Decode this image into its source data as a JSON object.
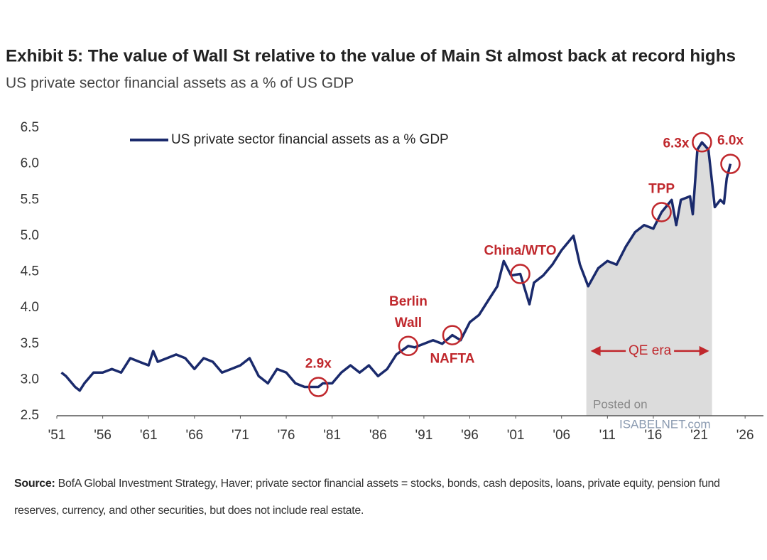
{
  "chart_data": {
    "type": "line",
    "title": "Exhibit 5: The value of Wall St relative to the value of Main St almost back at record highs",
    "subtitle": "US private sector financial assets as a % of US GDP",
    "x": [
      1951.5,
      1952,
      1953,
      1953.5,
      1954,
      1955,
      1956,
      1957,
      1958,
      1959,
      1960,
      1961,
      1961.5,
      1962,
      1963,
      1964,
      1965,
      1966,
      1967,
      1968,
      1969,
      1970,
      1971,
      1972,
      1973,
      1974,
      1975,
      1976,
      1977,
      1978,
      1979.5,
      1980,
      1981,
      1982,
      1983,
      1984,
      1985,
      1986,
      1987,
      1988,
      1989.3,
      1990,
      1991,
      1992,
      1993,
      1994.1,
      1995,
      1996,
      1997,
      1998,
      1999,
      1999.7,
      2000.5,
      2001.5,
      2002.5,
      2003,
      2004,
      2005,
      2006,
      2007.3,
      2008,
      2008.9,
      2010,
      2011,
      2012,
      2013,
      2014,
      2015,
      2016,
      2016.9,
      2018,
      2018.5,
      2019,
      2020,
      2020.3,
      2020.8,
      2021.3,
      2022,
      2022.7,
      2023.3,
      2023.7,
      2024,
      2024.4
    ],
    "series": [
      {
        "name": "US private sector financial assets as a % GDP",
        "color": "#1a2a6c",
        "values": [
          3.1,
          3.05,
          2.9,
          2.85,
          2.95,
          3.1,
          3.1,
          3.15,
          3.1,
          3.3,
          3.25,
          3.2,
          3.4,
          3.25,
          3.3,
          3.35,
          3.3,
          3.15,
          3.3,
          3.25,
          3.1,
          3.15,
          3.2,
          3.3,
          3.05,
          2.95,
          3.15,
          3.1,
          2.95,
          2.9,
          2.9,
          2.95,
          2.95,
          3.1,
          3.2,
          3.1,
          3.2,
          3.05,
          3.15,
          3.35,
          3.47,
          3.45,
          3.5,
          3.55,
          3.5,
          3.62,
          3.55,
          3.8,
          3.9,
          4.1,
          4.3,
          4.65,
          4.45,
          4.47,
          4.05,
          4.35,
          4.45,
          4.6,
          4.8,
          5.0,
          4.6,
          4.3,
          4.55,
          4.65,
          4.6,
          4.85,
          5.05,
          5.15,
          5.1,
          5.33,
          5.5,
          5.15,
          5.5,
          5.55,
          5.3,
          6.2,
          6.3,
          6.2,
          5.4,
          5.5,
          5.45,
          5.8,
          6.0
        ]
      }
    ],
    "xlim": [
      1951,
      2028
    ],
    "ylim": [
      2.5,
      6.5
    ],
    "xticks": [
      {
        "value": 1951,
        "label": "'51"
      },
      {
        "value": 1956,
        "label": "'56"
      },
      {
        "value": 1961,
        "label": "'61"
      },
      {
        "value": 1966,
        "label": "'66"
      },
      {
        "value": 1971,
        "label": "'71"
      },
      {
        "value": 1976,
        "label": "'76"
      },
      {
        "value": 1981,
        "label": "'81"
      },
      {
        "value": 1986,
        "label": "'86"
      },
      {
        "value": 1991,
        "label": "'91"
      },
      {
        "value": 1996,
        "label": "'96"
      },
      {
        "value": 2001,
        "label": "'01"
      },
      {
        "value": 2006,
        "label": "'06"
      },
      {
        "value": 2011,
        "label": "'11"
      },
      {
        "value": 2016,
        "label": "'16"
      },
      {
        "value": 2021,
        "label": "'21"
      },
      {
        "value": 2026,
        "label": "'26"
      }
    ],
    "yticks": [
      2.5,
      {
        "value": 3,
        "label": "3.0"
      },
      3.5,
      {
        "value": 4,
        "label": "4.0"
      },
      4.5,
      {
        "value": 5,
        "label": "5.0"
      },
      5.5,
      {
        "value": 6,
        "label": "6.0"
      },
      6.5
    ],
    "annotations": [
      {
        "text": [
          "2.9x"
        ],
        "x": 1979.5,
        "y": 2.9,
        "side": "above"
      },
      {
        "text": [
          "Berlin",
          "Wall"
        ],
        "x": 1989.3,
        "y": 3.47,
        "side": "above"
      },
      {
        "text": [
          "NAFTA"
        ],
        "x": 1994.1,
        "y": 3.62,
        "side": "below"
      },
      {
        "text": [
          "China/WTO"
        ],
        "x": 2001.5,
        "y": 4.47,
        "side": "above"
      },
      {
        "text": [
          "TPP"
        ],
        "x": 2016.9,
        "y": 5.33,
        "side": "above"
      },
      {
        "text": [
          "6.3x"
        ],
        "x": 2021.3,
        "y": 6.3,
        "side": "left"
      },
      {
        "text": [
          "6.0x"
        ],
        "x": 2024.4,
        "y": 6.0,
        "side": "above"
      }
    ],
    "qe_era": {
      "label": "QE era",
      "range": [
        2008.7,
        2022.4
      ],
      "y": 3.4
    },
    "watermark": [
      "Posted on",
      "ISABELNET.com"
    ],
    "source_label": "Source:",
    "source_text": "BofA Global Investment Strategy, Haver; private sector financial assets = stocks, bonds, cash deposits, loans, private equity, pension fund reserves, currency, and other securities, but does not include real estate."
  }
}
